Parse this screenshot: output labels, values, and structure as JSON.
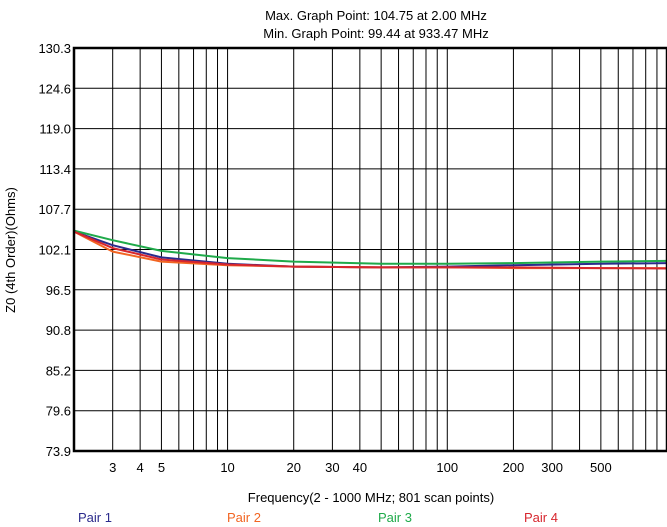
{
  "chart_data": {
    "type": "line",
    "title_lines": [
      "Max. Graph Point: 104.75 at 2.00 MHz",
      "Min. Graph Point: 99.44 at 933.47 MHz"
    ],
    "xlabel": "Frequency(2 - 1000 MHz; 801 scan points)",
    "ylabel": "Z0 (4th Order)(Ohms)",
    "x_scale": "log",
    "xlim": [
      2,
      1000
    ],
    "ylim": [
      73.9,
      130.3
    ],
    "grid": true,
    "legend_position": "bottom",
    "y_ticks": [
      "73.9",
      "79.6",
      "85.2",
      "90.8",
      "96.5",
      "102.1",
      "107.7",
      "113.4",
      "119.0",
      "124.6",
      "130.3"
    ],
    "x_tick_labels": [
      {
        "value": 3,
        "label": "3"
      },
      {
        "value": 4,
        "label": "4"
      },
      {
        "value": 5,
        "label": "5"
      },
      {
        "value": 10,
        "label": "10"
      },
      {
        "value": 20,
        "label": "20"
      },
      {
        "value": 30,
        "label": "30"
      },
      {
        "value": 40,
        "label": "40"
      },
      {
        "value": 100,
        "label": "100"
      },
      {
        "value": 200,
        "label": "200"
      },
      {
        "value": 300,
        "label": "300"
      },
      {
        "value": 500,
        "label": "500"
      }
    ],
    "x_gridlines": [
      3,
      4,
      5,
      6,
      7,
      8,
      9,
      10,
      20,
      30,
      40,
      50,
      60,
      70,
      80,
      90,
      100,
      200,
      300,
      400,
      500,
      600,
      700,
      800,
      900
    ],
    "x": [
      2,
      3,
      5,
      10,
      20,
      50,
      100,
      200,
      500,
      1000
    ],
    "series": [
      {
        "name": "Pair 1",
        "color": "#2b2b8c",
        "values": [
          104.6,
          102.7,
          101.0,
          100.1,
          99.7,
          99.6,
          99.7,
          99.9,
          100.1,
          100.2
        ]
      },
      {
        "name": "Pair 2",
        "color": "#f26522",
        "values": [
          104.6,
          101.8,
          100.4,
          99.9,
          99.7,
          99.6,
          99.6,
          99.5,
          99.5,
          99.5
        ]
      },
      {
        "name": "Pair 3",
        "color": "#1faa4a",
        "values": [
          104.75,
          103.4,
          101.9,
          100.9,
          100.4,
          100.1,
          100.1,
          100.2,
          100.4,
          100.5
        ]
      },
      {
        "name": "Pair 4",
        "color": "#d7262e",
        "values": [
          104.6,
          102.3,
          100.7,
          100.0,
          99.7,
          99.6,
          99.6,
          99.6,
          99.5,
          99.44
        ]
      }
    ]
  }
}
